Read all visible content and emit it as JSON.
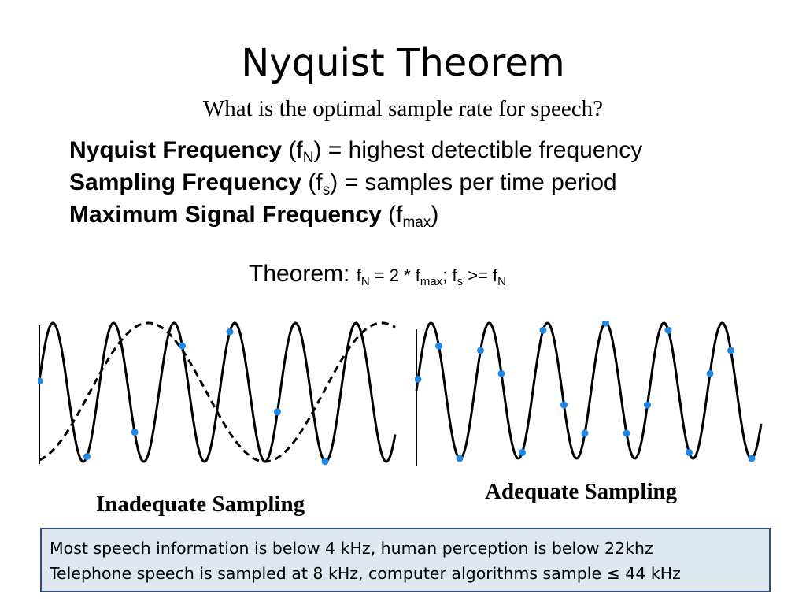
{
  "title": "Nyquist Theorem",
  "subtitle": "What is the optimal sample rate for speech?",
  "definitions": [
    {
      "term": "Nyquist Frequency",
      "open": " (f",
      "sub": "N",
      "close": ") = highest detectible frequency"
    },
    {
      "term": "Sampling Frequency",
      "open": " (f",
      "sub": "s",
      "close": ") = samples per time period"
    },
    {
      "term": "Maximum Signal Frequency",
      "open": " (f",
      "sub": "max",
      "close": ")"
    }
  ],
  "theorem": {
    "label": "Theorem: ",
    "p1": "f",
    "s1": "N",
    "p2": " = 2 * f",
    "s2": "max",
    "p3": "; f",
    "s3": "s",
    "p4": " >= f",
    "s4": "N"
  },
  "captions": {
    "left": "Inadequate Sampling",
    "right": "Adequate Sampling"
  },
  "note": {
    "line1": "Most speech information is below 4 kHz, human perception is below 22khz",
    "line2": "Telephone speech is sampled at 8 kHz, computer algorithms sample  ≤ 44 kHz"
  },
  "colors": {
    "wave": "#000000",
    "sample_dot": "#1e88e5",
    "note_bg": "#dfe7f1",
    "note_border": "#2e4d7a"
  }
}
